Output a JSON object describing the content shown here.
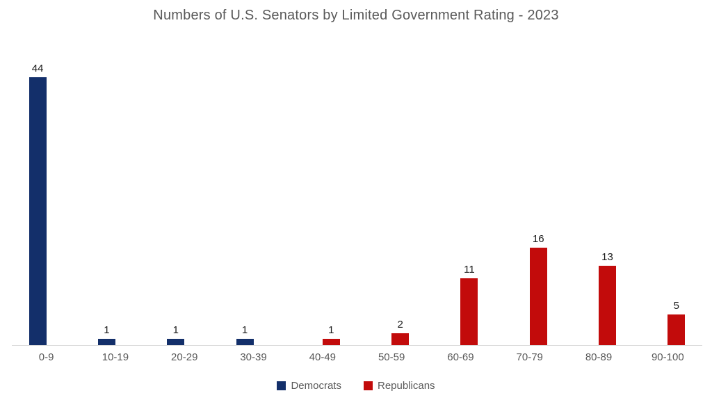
{
  "chart_data": {
    "type": "bar",
    "title": "Numbers of U.S. Senators by Limited Government Rating - 2023",
    "categories": [
      "0-9",
      "10-19",
      "20-29",
      "30-39",
      "40-49",
      "50-59",
      "60-69",
      "70-79",
      "80-89",
      "90-100"
    ],
    "series": [
      {
        "name": "Democrats",
        "color": "#132F6A",
        "values": [
          44,
          1,
          1,
          1,
          0,
          0,
          0,
          0,
          0,
          0
        ]
      },
      {
        "name": "Republicans",
        "color": "#C20B0B",
        "values": [
          0,
          0,
          0,
          0,
          1,
          2,
          11,
          16,
          13,
          5
        ]
      }
    ],
    "data_labels": [
      44,
      1,
      1,
      1,
      1,
      2,
      11,
      16,
      13,
      5
    ],
    "xlabel": "",
    "ylabel": "",
    "ylim": [
      0,
      48
    ],
    "grid": false,
    "legend_position": "bottom",
    "colors": {
      "title": "#595959",
      "tick_labels": "#595959",
      "data_labels": "#1a1a1a",
      "axis_line": "#d9d9d9",
      "background": "#ffffff"
    }
  },
  "legend": {
    "items": [
      {
        "label": "Democrats",
        "color": "#132F6A"
      },
      {
        "label": "Republicans",
        "color": "#C20B0B"
      }
    ]
  }
}
